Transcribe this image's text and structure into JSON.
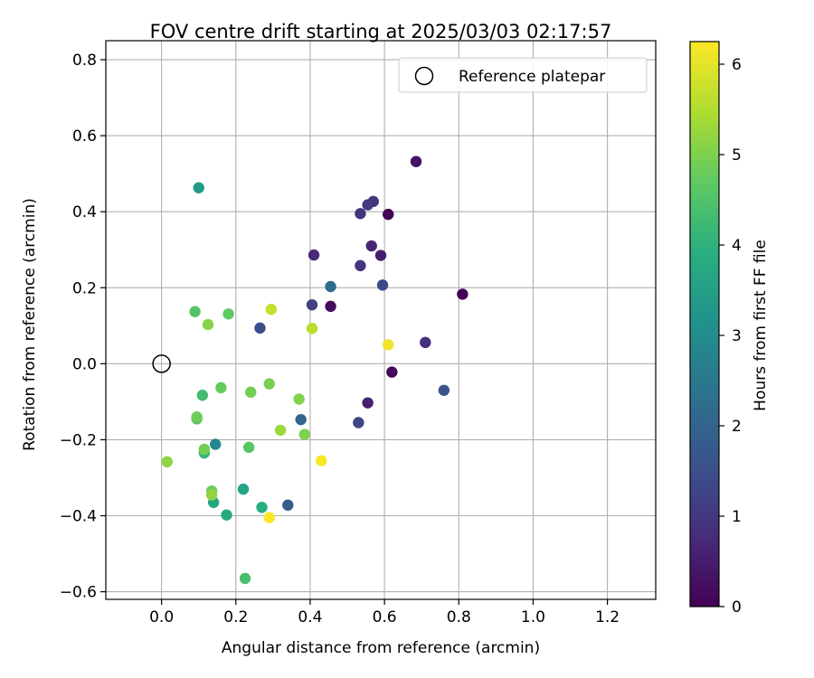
{
  "chart_data": {
    "type": "scatter",
    "title": "FOV centre drift starting at 2025/03/03 02:17:57",
    "xlabel": "Angular distance from reference (arcmin)",
    "ylabel": "Rotation from reference (arcmin)",
    "xlim": [
      -0.15,
      1.33
    ],
    "ylim": [
      -0.62,
      0.85
    ],
    "xticks": [
      "0.0",
      "0.2",
      "0.4",
      "0.6",
      "0.8",
      "1.0",
      "1.2"
    ],
    "yticks": [
      "−0.6",
      "−0.4",
      "−0.2",
      "0.0",
      "0.2",
      "0.4",
      "0.6",
      "0.8"
    ],
    "grid": true,
    "legend": {
      "position": "top-right",
      "label": "Reference platepar"
    },
    "reference_point": {
      "x": 0.0,
      "y": 0.0
    },
    "colorbar": {
      "label": "Hours from first FF file",
      "range": [
        0,
        6.25
      ],
      "ticks": [
        "0",
        "1",
        "2",
        "3",
        "4",
        "5",
        "6"
      ],
      "colormap": "viridis"
    },
    "points": [
      {
        "x": 0.81,
        "y": 0.183,
        "c": 0.0
      },
      {
        "x": 0.61,
        "y": 0.393,
        "c": 0.05
      },
      {
        "x": 0.62,
        "y": -0.022,
        "c": 0.15
      },
      {
        "x": 0.455,
        "y": 0.151,
        "c": 0.2
      },
      {
        "x": 0.685,
        "y": 0.532,
        "c": 0.3
      },
      {
        "x": 0.59,
        "y": 0.285,
        "c": 0.5
      },
      {
        "x": 0.555,
        "y": -0.103,
        "c": 0.55
      },
      {
        "x": 0.565,
        "y": 0.31,
        "c": 0.65
      },
      {
        "x": 0.41,
        "y": 0.286,
        "c": 0.75
      },
      {
        "x": 0.71,
        "y": 0.056,
        "c": 0.85
      },
      {
        "x": 0.535,
        "y": 0.258,
        "c": 0.9
      },
      {
        "x": 0.535,
        "y": 0.395,
        "c": 0.95
      },
      {
        "x": 0.57,
        "y": 0.427,
        "c": 1.0
      },
      {
        "x": 0.555,
        "y": 0.418,
        "c": 1.1
      },
      {
        "x": 0.405,
        "y": 0.155,
        "c": 1.2
      },
      {
        "x": 0.53,
        "y": -0.155,
        "c": 1.3
      },
      {
        "x": 0.595,
        "y": 0.207,
        "c": 1.4
      },
      {
        "x": 0.265,
        "y": 0.094,
        "c": 1.5
      },
      {
        "x": 0.76,
        "y": -0.07,
        "c": 1.6
      },
      {
        "x": 0.34,
        "y": -0.372,
        "c": 1.8
      },
      {
        "x": 0.375,
        "y": -0.147,
        "c": 2.0
      },
      {
        "x": 0.455,
        "y": 0.203,
        "c": 2.2
      },
      {
        "x": 0.145,
        "y": -0.212,
        "c": 2.9
      },
      {
        "x": 0.1,
        "y": 0.463,
        "c": 3.4
      },
      {
        "x": 0.22,
        "y": -0.33,
        "c": 3.6
      },
      {
        "x": 0.14,
        "y": -0.365,
        "c": 3.7
      },
      {
        "x": 0.175,
        "y": -0.398,
        "c": 3.8
      },
      {
        "x": 0.27,
        "y": -0.378,
        "c": 3.9
      },
      {
        "x": 0.115,
        "y": -0.235,
        "c": 4.1
      },
      {
        "x": 0.11,
        "y": -0.083,
        "c": 4.3
      },
      {
        "x": 0.225,
        "y": -0.565,
        "c": 4.4
      },
      {
        "x": 0.09,
        "y": 0.137,
        "c": 4.5
      },
      {
        "x": 0.095,
        "y": -0.145,
        "c": 4.55
      },
      {
        "x": 0.235,
        "y": -0.22,
        "c": 4.6
      },
      {
        "x": 0.18,
        "y": 0.131,
        "c": 4.7
      },
      {
        "x": 0.16,
        "y": -0.063,
        "c": 4.75
      },
      {
        "x": 0.135,
        "y": -0.335,
        "c": 4.8
      },
      {
        "x": 0.095,
        "y": -0.14,
        "c": 4.85
      },
      {
        "x": 0.115,
        "y": -0.225,
        "c": 4.9
      },
      {
        "x": 0.24,
        "y": -0.075,
        "c": 4.9
      },
      {
        "x": 0.29,
        "y": -0.053,
        "c": 4.95
      },
      {
        "x": 0.385,
        "y": -0.186,
        "c": 5.0
      },
      {
        "x": 0.37,
        "y": -0.093,
        "c": 5.05
      },
      {
        "x": 0.125,
        "y": 0.103,
        "c": 5.1
      },
      {
        "x": 0.015,
        "y": -0.258,
        "c": 5.15
      },
      {
        "x": 0.135,
        "y": -0.345,
        "c": 5.2
      },
      {
        "x": 0.32,
        "y": -0.175,
        "c": 5.3
      },
      {
        "x": 0.405,
        "y": 0.093,
        "c": 5.6
      },
      {
        "x": 0.295,
        "y": 0.143,
        "c": 5.7
      },
      {
        "x": 0.61,
        "y": 0.05,
        "c": 6.1
      },
      {
        "x": 0.43,
        "y": -0.255,
        "c": 6.2
      },
      {
        "x": 0.29,
        "y": -0.405,
        "c": 6.25
      }
    ]
  }
}
